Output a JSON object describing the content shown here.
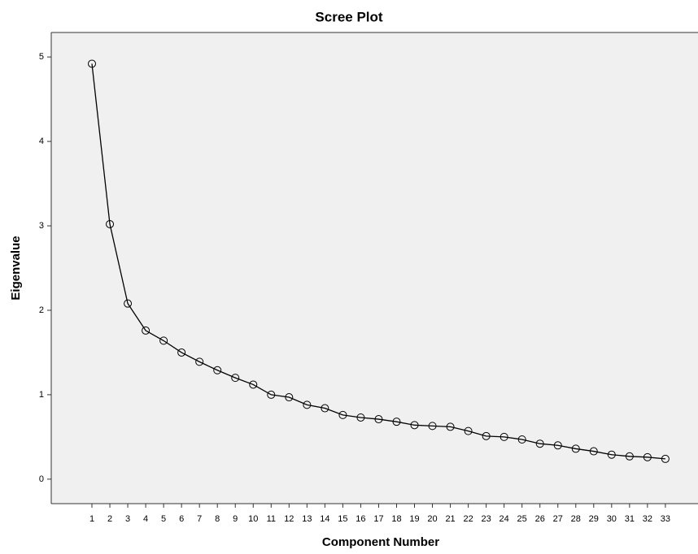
{
  "chart_data": {
    "type": "line",
    "title": "Scree Plot",
    "x_label": "Component Number",
    "y_label": "Eigenvalue",
    "x": [
      1,
      2,
      3,
      4,
      5,
      6,
      7,
      8,
      9,
      10,
      11,
      12,
      13,
      14,
      15,
      16,
      17,
      18,
      19,
      20,
      21,
      22,
      23,
      24,
      25,
      26,
      27,
      28,
      29,
      30,
      31,
      32,
      33
    ],
    "series": [
      {
        "name": "Eigenvalue",
        "color": "#000000",
        "values": [
          4.92,
          3.02,
          2.08,
          1.76,
          1.64,
          1.5,
          1.39,
          1.29,
          1.2,
          1.12,
          1.0,
          0.97,
          0.88,
          0.84,
          0.76,
          0.73,
          0.71,
          0.68,
          0.64,
          0.63,
          0.62,
          0.57,
          0.51,
          0.5,
          0.47,
          0.42,
          0.4,
          0.36,
          0.33,
          0.29,
          0.27,
          0.26,
          0.24
        ]
      }
    ],
    "xlim": [
      -1.27,
      34.82
    ],
    "xticks": [
      1,
      2,
      3,
      4,
      5,
      6,
      7,
      8,
      9,
      10,
      11,
      12,
      13,
      14,
      15,
      16,
      17,
      18,
      19,
      20,
      21,
      22,
      23,
      24,
      25,
      26,
      27,
      28,
      29,
      30,
      31,
      32,
      33
    ],
    "ylim": [
      -0.29,
      5.29
    ],
    "yticks": [
      0,
      1,
      2,
      3,
      4,
      5
    ],
    "grid": false
  }
}
